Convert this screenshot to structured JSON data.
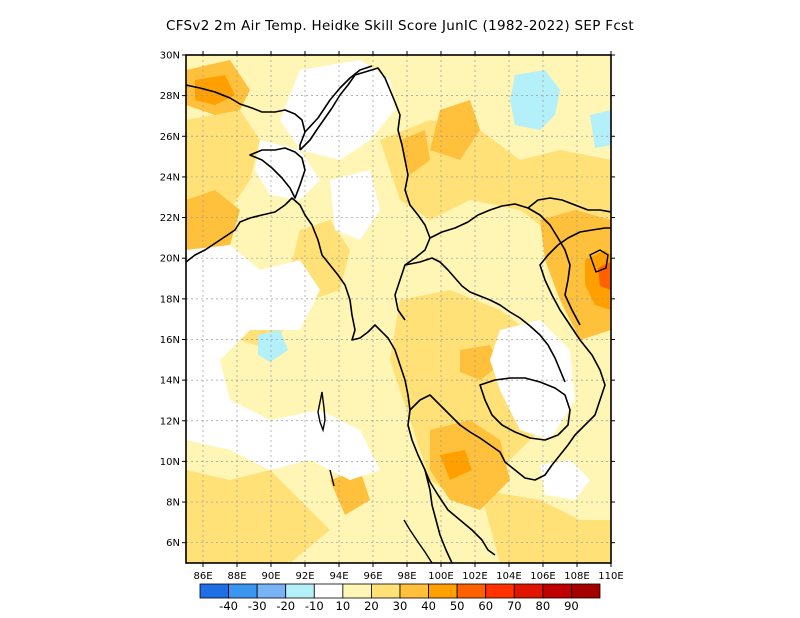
{
  "title": "CFSv2  2m Air Temp. Heidke Skill Score JunIC (1982-2022) SEP Fcst",
  "chart_data": {
    "type": "heatmap",
    "title": "CFSv2  2m Air Temp. Heidke Skill Score JunIC (1982-2022) SEP Fcst",
    "x_tick_labels": [
      "86E",
      "88E",
      "90E",
      "92E",
      "94E",
      "96E",
      "98E",
      "100E",
      "102E",
      "104E",
      "106E",
      "108E",
      "110E"
    ],
    "y_tick_labels": [
      "6N",
      "8N",
      "10N",
      "12N",
      "14N",
      "16N",
      "18N",
      "20N",
      "22N",
      "24N",
      "26N",
      "28N",
      "30N"
    ],
    "lon_range": [
      85,
      110
    ],
    "lat_range": [
      5,
      30
    ],
    "grid": true,
    "colorbar": {
      "colors": [
        "#1e6ee6",
        "#3c96f0",
        "#78b4f5",
        "#b4f0fa",
        "#ffffff",
        "#fff5b4",
        "#ffe178",
        "#ffc03c",
        "#ffa000",
        "#ff6000",
        "#ff3200",
        "#e11400",
        "#c00000",
        "#a50000"
      ],
      "labels": [
        "-40",
        "-30",
        "-20",
        "-10",
        "10",
        "20",
        "30",
        "40",
        "50",
        "60",
        "70",
        "80",
        "90"
      ]
    },
    "regions": [
      {
        "level": "10-20",
        "color": "#fff5b4",
        "extent": "widespread background over land and ocean"
      },
      {
        "level": "20-30",
        "color": "#ffe178",
        "extent": "Bay of Bengal south, central Thailand, Laos, northern Myanmar"
      },
      {
        "level": "30-40",
        "color": "#ffc03c",
        "extent": "Gulf of Thailand, Bangladesh coast, Nepal/NE India, Hainan region"
      },
      {
        "level": "40-50",
        "color": "#ffa000",
        "extent": "small patches near 108E 18N and 88E 28N"
      },
      {
        "level": "-10-10",
        "color": "#ffffff",
        "extent": "central India/Bay of Bengal, Yunnan, Cambodia"
      },
      {
        "level": "-20--10",
        "color": "#b4f0fa",
        "extent": "south China near 105E 28N, Bay of Bengal near 91E 16N"
      }
    ]
  }
}
